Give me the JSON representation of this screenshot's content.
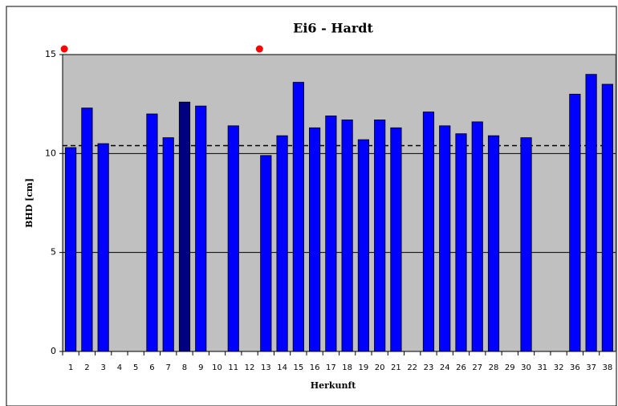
{
  "chart_data": {
    "type": "bar",
    "title": "Ei6 - Hardt",
    "x_label": "Herkunft",
    "y_label": "BHD [cm]",
    "categories": [
      "1",
      "2",
      "3",
      "4",
      "5",
      "6",
      "7",
      "8",
      "9",
      "10",
      "11",
      "12",
      "13",
      "14",
      "15",
      "16",
      "17",
      "18",
      "19",
      "20",
      "21",
      "22",
      "23",
      "24",
      "26",
      "27",
      "28",
      "29",
      "30",
      "31",
      "32",
      "36",
      "37",
      "38"
    ],
    "values": [
      10.3,
      12.3,
      10.5,
      null,
      null,
      12.0,
      10.8,
      12.6,
      12.4,
      null,
      11.4,
      null,
      9.9,
      10.9,
      13.6,
      11.3,
      11.9,
      11.7,
      10.7,
      11.7,
      11.3,
      null,
      12.1,
      11.4,
      11.0,
      11.6,
      10.9,
      null,
      10.8,
      null,
      null,
      13.0,
      14.0,
      13.5
    ],
    "color": "#0000ff",
    "highlight_category": "8",
    "highlight_color": "#000080",
    "marker_categories": [
      "1",
      "13"
    ],
    "marker_color": "#ff0000",
    "reference_line": 10.4,
    "ylim": [
      0,
      15
    ],
    "yticks": [
      0,
      5,
      10,
      15
    ],
    "grid": true,
    "background": "#c0c0c0"
  }
}
